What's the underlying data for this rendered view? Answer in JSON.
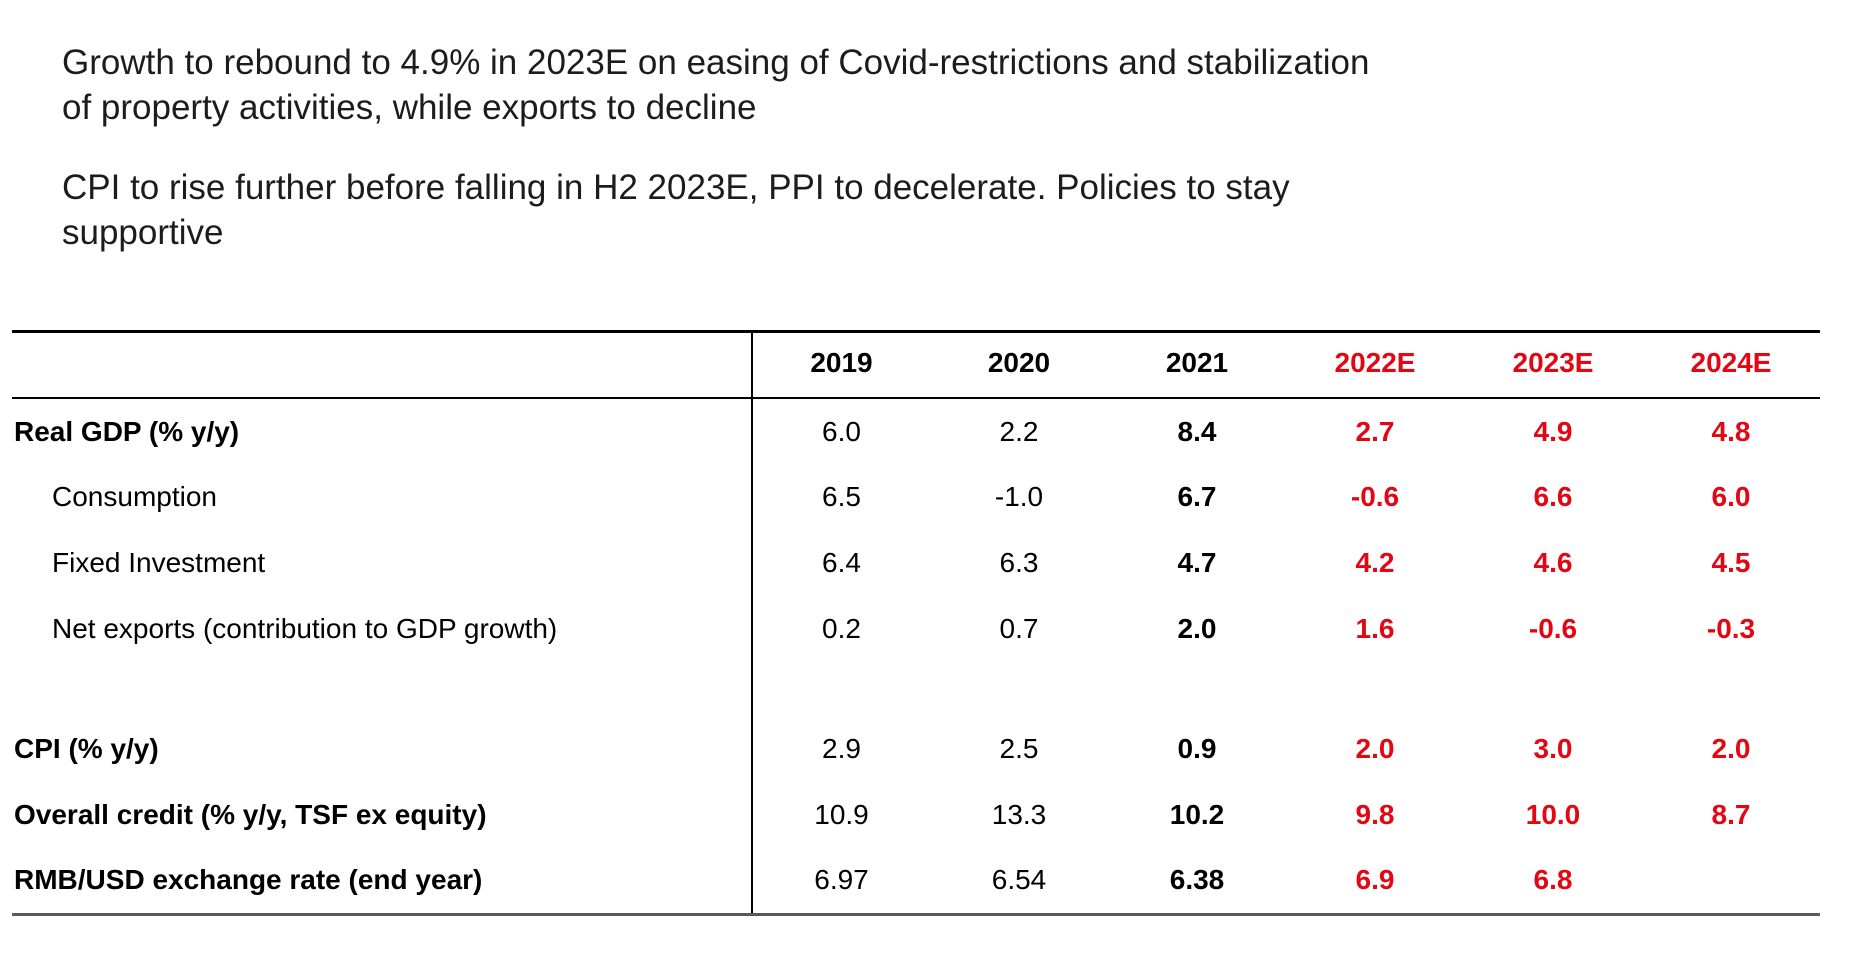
{
  "headline": {
    "paragraph1": {
      "line1": "Growth to rebound to 4.9% in 2023E on easing of Covid-restrictions and stabilization",
      "line2": "of property activities, while exports to decline"
    },
    "paragraph2": {
      "line1": "CPI to rise further before falling in H2 2023E, PPI to decelerate. Policies to stay",
      "line2": "supportive"
    }
  },
  "colors": {
    "body_text": "#1c1c1c",
    "table_text": "#000000",
    "forecast_red": "#e30613",
    "rule_black": "#000000",
    "rule_gray": "#5a5a5a"
  },
  "chart_data": {
    "type": "table",
    "columns": [
      "",
      "2019",
      "2020",
      "2021",
      "2022E",
      "2023E",
      "2024E"
    ],
    "forecast_columns": [
      "2022E",
      "2023E",
      "2024E"
    ],
    "column_value_styles": [
      "plain-black",
      "plain-black",
      "bold-black",
      "bold-red",
      "bold-red",
      "bold-red"
    ],
    "rows": [
      {
        "label": "Real GDP (% y/y)",
        "style": "bold",
        "indent": false,
        "values": [
          "6.0",
          "2.2",
          "8.4",
          "2.7",
          "4.9",
          "4.8"
        ]
      },
      {
        "label": "Consumption",
        "style": "regular",
        "indent": true,
        "values": [
          "6.5",
          "-1.0",
          "6.7",
          "-0.6",
          "6.6",
          "6.0"
        ]
      },
      {
        "label": "Fixed Investment",
        "style": "regular",
        "indent": true,
        "values": [
          "6.4",
          "6.3",
          "4.7",
          "4.2",
          "4.6",
          "4.5"
        ]
      },
      {
        "label": "Net exports (contribution to GDP growth)",
        "style": "regular",
        "indent": true,
        "values": [
          "0.2",
          "0.7",
          "2.0",
          "1.6",
          "-0.6",
          "-0.3"
        ]
      },
      {
        "label": "",
        "style": "spacer",
        "indent": false,
        "values": [
          "",
          "",
          "",
          "",
          "",
          ""
        ]
      },
      {
        "label": "CPI (% y/y)",
        "style": "bold",
        "indent": false,
        "values": [
          "2.9",
          "2.5",
          "0.9",
          "2.0",
          "3.0",
          "2.0"
        ]
      },
      {
        "label": "Overall credit (% y/y, TSF ex equity)",
        "style": "bold",
        "indent": false,
        "values": [
          "10.9",
          "13.3",
          "10.2",
          "9.8",
          "10.0",
          "8.7"
        ]
      },
      {
        "label": "RMB/USD exchange rate (end year)",
        "style": "bold",
        "indent": false,
        "values": [
          "6.97",
          "6.54",
          "6.38",
          "6.9",
          "6.8",
          ""
        ]
      }
    ]
  }
}
